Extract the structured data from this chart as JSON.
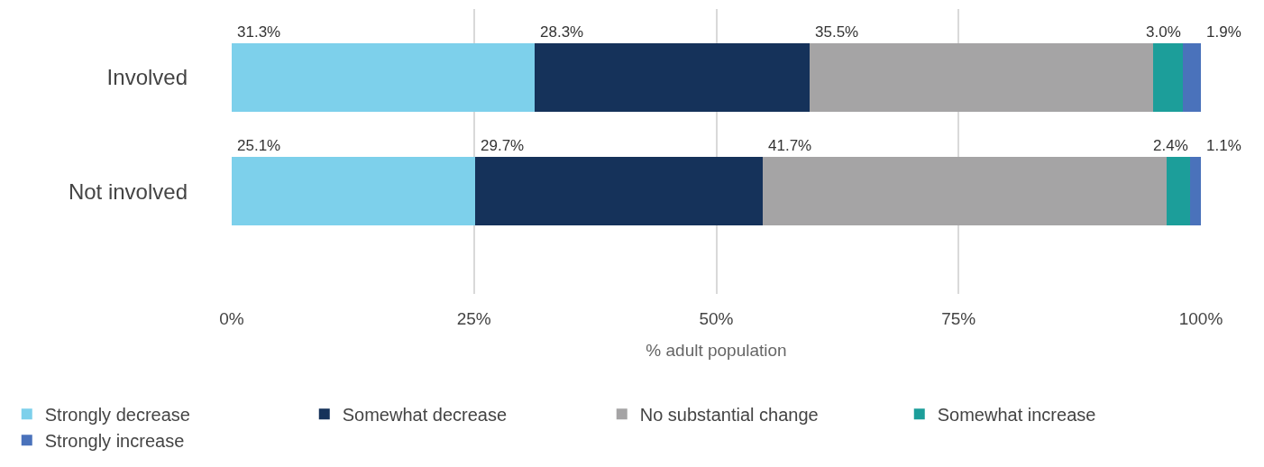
{
  "chart_data": {
    "type": "bar",
    "orientation": "horizontal",
    "stacked": true,
    "categories": [
      "Involved",
      "Not involved"
    ],
    "series": [
      {
        "name": "Strongly decrease",
        "color": "#7dd0eb",
        "values": [
          31.3,
          25.1
        ],
        "value_labels": [
          "31.3%",
          "25.1%"
        ]
      },
      {
        "name": "Somewhat decrease",
        "color": "#15325a",
        "values": [
          28.3,
          29.7
        ],
        "value_labels": [
          "28.3%",
          "29.7%"
        ]
      },
      {
        "name": "No substantial change",
        "color": "#a5a4a5",
        "values": [
          35.5,
          41.7
        ],
        "value_labels": [
          "35.5%",
          "41.7%"
        ]
      },
      {
        "name": "Somewhat increase",
        "color": "#1c9e9a",
        "values": [
          3.0,
          2.4
        ],
        "value_labels": [
          "3.0%",
          "2.4%"
        ]
      },
      {
        "name": "Strongly increase",
        "color": "#4a72bb",
        "values": [
          1.9,
          1.1
        ],
        "value_labels": [
          "1.9%",
          "1.1%"
        ]
      }
    ],
    "xlim": [
      0,
      100
    ],
    "xticks": [
      {
        "value": 0,
        "label": "0%"
      },
      {
        "value": 25,
        "label": "25%"
      },
      {
        "value": 50,
        "label": "50%"
      },
      {
        "value": 75,
        "label": "75%"
      },
      {
        "value": 100,
        "label": "100%"
      }
    ],
    "xlabel": "% adult population",
    "grid": "x",
    "legend": "bottom"
  }
}
